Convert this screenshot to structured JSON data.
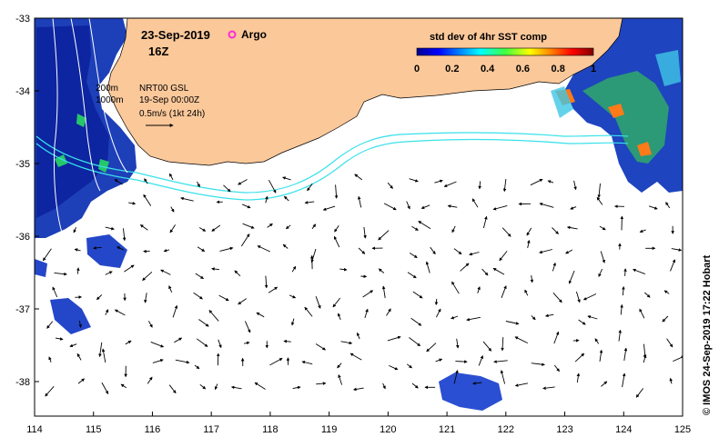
{
  "map": {
    "date_label": "23-Sep-2019",
    "time_label": "16Z",
    "argo_label": "Argo",
    "contour_200": "200m",
    "contour_1000": "1000m",
    "product_label": "NRT00 GSL",
    "product_date": "19-Sep 00:00Z",
    "vector_scale_label": "0.5m/s (1kt 24h)",
    "credit": "© IMOS 24-Sep-2019 17:22 Hobart",
    "lon_ticks": [
      "114",
      "115",
      "116",
      "117",
      "118",
      "119",
      "120",
      "121",
      "122",
      "123",
      "124",
      "125"
    ],
    "lat_ticks": [
      "-33",
      "-34",
      "-35",
      "-36",
      "-37",
      "-38"
    ],
    "colors": {
      "land": "#fbc89a",
      "ocean": "#ffffff",
      "shelf_contour": "#39e1ea",
      "argo_marker": "#ff2bd6"
    }
  },
  "colorbar": {
    "title": "std dev of 4hr SST comp",
    "ticks": [
      "0",
      "0.2",
      "0.4",
      "0.6",
      "0.8",
      "1"
    ],
    "range": [
      0,
      1
    ]
  }
}
